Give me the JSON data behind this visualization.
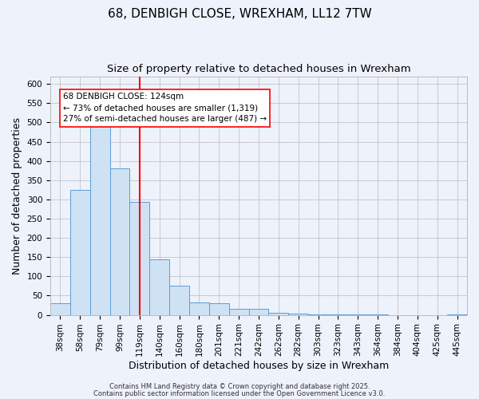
{
  "title1": "68, DENBIGH CLOSE, WREXHAM, LL12 7TW",
  "title2": "Size of property relative to detached houses in Wrexham",
  "xlabel": "Distribution of detached houses by size in Wrexham",
  "ylabel": "Number of detached properties",
  "categories": [
    "38sqm",
    "58sqm",
    "79sqm",
    "99sqm",
    "119sqm",
    "140sqm",
    "160sqm",
    "180sqm",
    "201sqm",
    "221sqm",
    "242sqm",
    "262sqm",
    "282sqm",
    "303sqm",
    "323sqm",
    "343sqm",
    "364sqm",
    "384sqm",
    "404sqm",
    "425sqm",
    "445sqm"
  ],
  "values": [
    30,
    325,
    490,
    380,
    293,
    145,
    75,
    32,
    30,
    15,
    15,
    6,
    3,
    2,
    1,
    1,
    1,
    0,
    0,
    0,
    1
  ],
  "bar_color": "#cfe2f3",
  "bar_edge_color": "#5b9bd5",
  "red_line_x": 4.5,
  "annotation_line1": "68 DENBIGH CLOSE: 124sqm",
  "annotation_line2": "← 73% of detached houses are smaller (1,319)",
  "annotation_line3": "27% of semi-detached houses are larger (487) →",
  "ylim": [
    0,
    620
  ],
  "yticks": [
    0,
    50,
    100,
    150,
    200,
    250,
    300,
    350,
    400,
    450,
    500,
    550,
    600
  ],
  "footer1": "Contains HM Land Registry data © Crown copyright and database right 2025.",
  "footer2": "Contains public sector information licensed under the Open Government Licence v3.0.",
  "background_color": "#eef2fb",
  "grid_color": "#bbbbbb",
  "title_fontsize": 11,
  "subtitle_fontsize": 9.5,
  "label_fontsize": 9,
  "tick_fontsize": 7.5,
  "footer_fontsize": 6
}
